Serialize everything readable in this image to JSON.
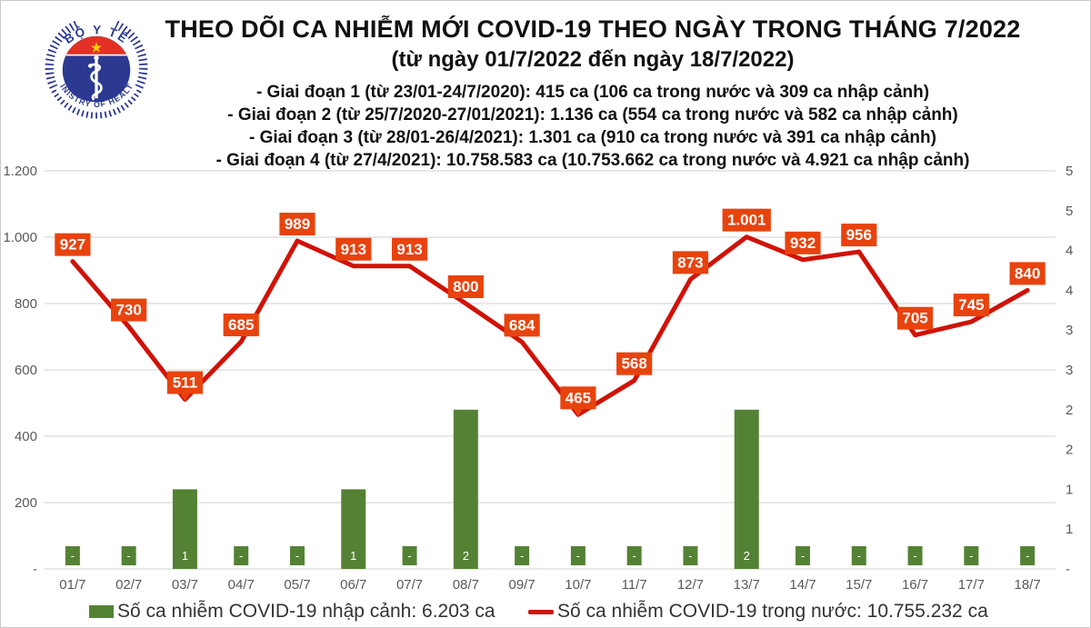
{
  "header": {
    "title": "THEO DÕI CA NHIỄM MỚI COVID-19 THEO NGÀY TRONG THÁNG 7/2022",
    "subtitle": "(từ ngày 01/7/2022 đến ngày 18/7/2022)",
    "phases": [
      "- Giai đoạn 1 (từ 23/01-24/7/2020): 415 ca (106 ca trong nước và 309 ca nhập cảnh)",
      "- Giai đoạn 2 (từ 25/7/2020-27/01/2021): 1.136 ca (554 ca trong nước và 582 ca nhập cảnh)",
      "- Giai đoạn 3 (từ 28/01-26/4/2021): 1.301 ca (910 ca trong nước và 391 ca nhập cảnh)",
      "- Giai đoạn 4 (từ 27/4/2021): 10.758.583 ca (10.753.662 ca trong nước và 4.921 ca nhập cảnh)"
    ]
  },
  "logo": {
    "top_text": "BỘ Y TẾ",
    "bottom_text": "MINISTRY OF HEALTH",
    "navy": "#2b3990",
    "red": "#e23124",
    "star": "#ffd100"
  },
  "chart_data": {
    "type": "combo",
    "categories": [
      "01/7",
      "02/7",
      "03/7",
      "04/7",
      "05/7",
      "06/7",
      "07/7",
      "08/7",
      "09/7",
      "10/7",
      "11/7",
      "12/7",
      "13/7",
      "14/7",
      "15/7",
      "16/7",
      "17/7",
      "18/7"
    ],
    "series": [
      {
        "name": "Số ca nhiễm COVID-19 nhập cảnh",
        "type": "bar",
        "axis": "right",
        "color": "#548235",
        "values": [
          0,
          0,
          1,
          0,
          0,
          1,
          0,
          2,
          0,
          0,
          0,
          0,
          2,
          0,
          0,
          0,
          0,
          0
        ],
        "labels": [
          "-",
          "-",
          "1",
          "-",
          "-",
          "1",
          "-",
          "2",
          "-",
          "-",
          "-",
          "-",
          "2",
          "-",
          "-",
          "-",
          "-",
          "-"
        ]
      },
      {
        "name": "Số ca nhiễm COVID-19 trong nước",
        "type": "line",
        "axis": "left",
        "color": "#d01207",
        "label_bg": "#e8430e",
        "values": [
          927,
          730,
          511,
          685,
          989,
          913,
          913,
          800,
          684,
          465,
          568,
          873,
          1001,
          932,
          956,
          705,
          745,
          840
        ],
        "labels": [
          "927",
          "730",
          "511",
          "685",
          "989",
          "913",
          "913",
          "800",
          "684",
          "465",
          "568",
          "873",
          "1.001",
          "932",
          "956",
          "705",
          "745",
          "840"
        ]
      }
    ],
    "left_axis": {
      "min": 0,
      "max": 1200,
      "tick_labels": [
        "-",
        "200",
        "400",
        "600",
        "800",
        "1.000",
        "1.200"
      ]
    },
    "right_axis": {
      "min": 0,
      "max": 5,
      "tick_labels": [
        "-",
        "1",
        "1",
        "2",
        "2",
        "3",
        "3",
        "4",
        "4",
        "5",
        "5"
      ]
    },
    "callout_indices": [
      2,
      9
    ],
    "grid": true,
    "gridline_color": "#d9d9d9",
    "legend_position": "bottom"
  },
  "legend": [
    {
      "label": "Số ca nhiễm COVID-19 nhập cảnh: 6.203 ca",
      "color": "#548235"
    },
    {
      "label": "Số ca nhiễm COVID-19 trong nước: 10.755.232 ca",
      "color": "#d01207"
    }
  ]
}
